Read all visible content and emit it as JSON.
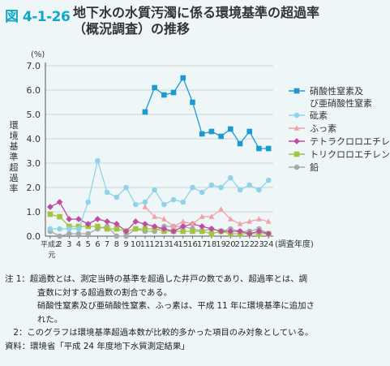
{
  "figure_number": "図 4-1-26",
  "title_line1": "地下水の水質汚濁に係る環境基準の超過率",
  "title_line2": "（概況調査）の推移",
  "chart_data": {
    "type": "line",
    "y_unit": "(%)",
    "ylabel": "環境基準超過率",
    "xlabel": "(調査年度)",
    "ylim": [
      0,
      7
    ],
    "yticks": [
      "0.0",
      "1.0",
      "2.0",
      "3.0",
      "4.0",
      "5.0",
      "6.0",
      "7.0"
    ],
    "categories": [
      "平成2元",
      "2",
      "3",
      "4",
      "5",
      "6",
      "7",
      "8",
      "9",
      "10",
      "11",
      "12",
      "13",
      "14",
      "15",
      "16",
      "17",
      "18",
      "19",
      "20",
      "21",
      "22",
      "23",
      "24"
    ],
    "grid": true,
    "legend_position": "right",
    "series": [
      {
        "name": "硝酸性窒素及び亜硝酸性窒素",
        "color": "#1b9ad1",
        "marker": "square",
        "values": [
          null,
          null,
          null,
          null,
          null,
          null,
          null,
          null,
          null,
          null,
          5.1,
          6.1,
          5.8,
          5.9,
          6.5,
          5.5,
          4.2,
          4.3,
          4.1,
          4.4,
          3.8,
          4.3,
          3.6,
          3.6
        ]
      },
      {
        "name": "砒素",
        "color": "#8fd3ea",
        "marker": "circle",
        "values": [
          0.3,
          0.3,
          0.3,
          0.3,
          1.4,
          3.1,
          1.8,
          1.6,
          2.0,
          1.3,
          1.4,
          1.9,
          1.3,
          1.5,
          1.4,
          2.0,
          1.8,
          2.1,
          2.0,
          2.4,
          1.9,
          2.1,
          1.9,
          2.3
        ]
      },
      {
        "name": "ふっ素",
        "color": "#f3a0a8",
        "marker": "triangle",
        "values": [
          null,
          null,
          null,
          null,
          null,
          null,
          null,
          null,
          null,
          null,
          1.2,
          0.8,
          0.7,
          0.4,
          0.6,
          0.5,
          0.8,
          0.8,
          1.1,
          0.7,
          0.5,
          0.6,
          0.7,
          0.6
        ]
      },
      {
        "name": "テトラクロロエチレン",
        "color": "#c04aa4",
        "marker": "diamond",
        "values": [
          1.2,
          1.4,
          0.7,
          0.7,
          0.5,
          0.7,
          0.6,
          0.5,
          0.2,
          0.6,
          0.5,
          0.4,
          0.3,
          0.2,
          0.4,
          0.5,
          0.4,
          0.3,
          0.2,
          0.2,
          0.2,
          0.1,
          0.2,
          0.1
        ]
      },
      {
        "name": "トリクロロエチレン",
        "color": "#a3c43e",
        "marker": "square",
        "values": [
          0.9,
          0.8,
          0.4,
          0.4,
          0.4,
          0.4,
          0.3,
          0.3,
          0.2,
          0.3,
          0.3,
          0.3,
          0.2,
          0.2,
          0.2,
          0.2,
          0.2,
          0.1,
          0.2,
          0.1,
          0.1,
          0.1,
          0.1,
          0.1
        ]
      },
      {
        "name": "鉛",
        "color": "#a7a9ab",
        "marker": "circle",
        "values": [
          0.2,
          0.0,
          0.1,
          0.1,
          0.1,
          0.3,
          0.4,
          0.0,
          0.0,
          0.3,
          0.2,
          0.2,
          0.4,
          0.4,
          0.4,
          0.3,
          0.2,
          0.3,
          0.2,
          0.3,
          0.2,
          0.2,
          0.3,
          0.1
        ]
      }
    ]
  },
  "notes": [
    "注 1：超過数とは、測定当時の基準を超過した井戸の数であり、超過率とは、調",
    "査数に対する超過数の割合である。",
    "硝酸性窒素及び亜硝酸性窒素、ふっ素は、平成 11 年に環境基準に追加さ",
    "れた。",
    "　2：このグラフは環境基準超過本数が比較的多かった項目のみ対象としている。",
    "資料：環境省「平成 24 年度地下水質測定結果」"
  ]
}
